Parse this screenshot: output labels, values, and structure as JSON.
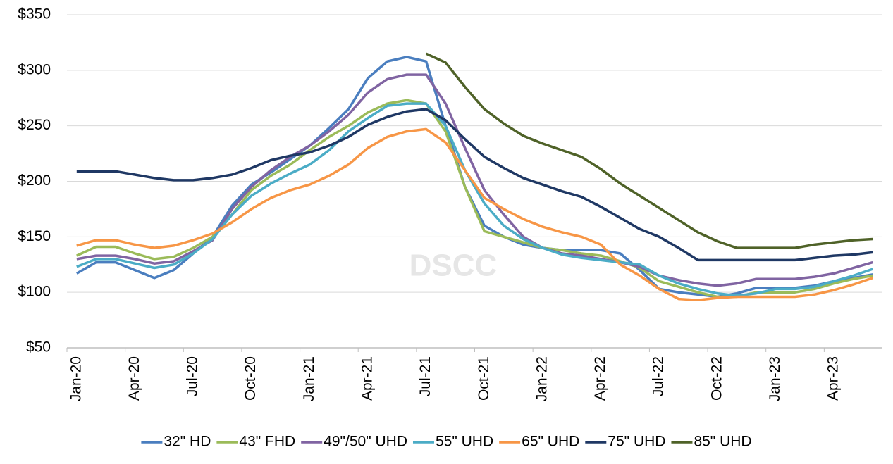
{
  "chart_data": {
    "type": "line",
    "annotation": "DSCC",
    "categories": [
      "Jan-20",
      null,
      null,
      "Apr-20",
      null,
      null,
      "Jul-20",
      null,
      null,
      "Oct-20",
      null,
      null,
      "Jan-21",
      null,
      null,
      "Apr-21",
      null,
      null,
      "Jul-21",
      null,
      null,
      "Oct-21",
      null,
      null,
      "Jan-22",
      null,
      null,
      "Apr-22",
      null,
      null,
      "Jul-22",
      null,
      null,
      "Oct-22",
      null,
      null,
      "Jan-23",
      null,
      null,
      "Apr-23",
      null,
      null
    ],
    "series": [
      {
        "name": "32\" HD",
        "color": "#4a7ebf",
        "values": [
          117,
          127,
          127,
          120,
          113,
          120,
          135,
          150,
          178,
          197,
          208,
          220,
          232,
          248,
          265,
          293,
          308,
          312,
          308,
          250,
          195,
          160,
          150,
          143,
          140,
          138,
          138,
          138,
          135,
          120,
          103,
          100,
          98,
          96,
          99,
          104,
          104,
          104,
          106,
          110,
          113,
          116
        ]
      },
      {
        "name": "43\" FHD",
        "color": "#9bbb59",
        "values": [
          133,
          141,
          141,
          135,
          130,
          132,
          140,
          150,
          170,
          192,
          205,
          215,
          228,
          240,
          250,
          262,
          270,
          273,
          270,
          245,
          195,
          155,
          150,
          145,
          140,
          138,
          135,
          133,
          128,
          122,
          110,
          105,
          100,
          96,
          96,
          100,
          100,
          100,
          103,
          108,
          112,
          115
        ]
      },
      {
        "name": "49\"/50\" UHD",
        "color": "#8064a2",
        "values": [
          130,
          133,
          133,
          130,
          126,
          128,
          137,
          147,
          175,
          195,
          210,
          222,
          232,
          245,
          260,
          280,
          292,
          296,
          296,
          270,
          230,
          192,
          170,
          150,
          140,
          135,
          133,
          130,
          127,
          123,
          115,
          111,
          108,
          106,
          108,
          112,
          112,
          112,
          114,
          117,
          122,
          127
        ]
      },
      {
        "name": "55\" UHD",
        "color": "#4bacc6",
        "values": [
          123,
          130,
          130,
          126,
          122,
          125,
          135,
          148,
          170,
          187,
          198,
          207,
          215,
          228,
          245,
          257,
          268,
          270,
          270,
          250,
          210,
          180,
          160,
          148,
          140,
          134,
          131,
          129,
          127,
          125,
          115,
          108,
          103,
          99,
          97,
          99,
          103,
          103,
          105,
          110,
          115,
          121
        ]
      },
      {
        "name": "65\" UHD",
        "color": "#f79646",
        "values": [
          142,
          147,
          147,
          143,
          140,
          142,
          147,
          153,
          163,
          175,
          185,
          192,
          197,
          205,
          215,
          230,
          240,
          245,
          247,
          235,
          210,
          185,
          175,
          166,
          159,
          154,
          150,
          143,
          125,
          115,
          103,
          94,
          93,
          95,
          96,
          96,
          96,
          96,
          98,
          102,
          107,
          113
        ]
      },
      {
        "name": "75\" UHD",
        "color": "#1f3864",
        "values": [
          209,
          209,
          209,
          206,
          203,
          201,
          201,
          203,
          206,
          212,
          219,
          223,
          226,
          232,
          240,
          251,
          258,
          263,
          265,
          255,
          238,
          222,
          212,
          203,
          197,
          191,
          186,
          177,
          167,
          157,
          150,
          140,
          129,
          129,
          129,
          129,
          129,
          129,
          131,
          133,
          134,
          136
        ]
      },
      {
        "name": "85\" UHD",
        "color": "#4f6228",
        "values": [
          null,
          null,
          null,
          null,
          null,
          null,
          null,
          null,
          null,
          null,
          null,
          null,
          null,
          null,
          null,
          null,
          null,
          null,
          315,
          307,
          285,
          265,
          252,
          241,
          234,
          228,
          222,
          211,
          198,
          187,
          176,
          165,
          154,
          146,
          140,
          140,
          140,
          140,
          143,
          145,
          147,
          148
        ]
      }
    ],
    "ylim": [
      50,
      350
    ],
    "yticks": [
      {
        "value": 50,
        "label": "$50"
      },
      {
        "value": 100,
        "label": "$100"
      },
      {
        "value": 150,
        "label": "$150"
      },
      {
        "value": 200,
        "label": "$200"
      },
      {
        "value": 250,
        "label": "$250"
      },
      {
        "value": 300,
        "label": "$300"
      },
      {
        "value": 350,
        "label": "$350"
      }
    ],
    "grid": true,
    "legend": "bottom"
  }
}
